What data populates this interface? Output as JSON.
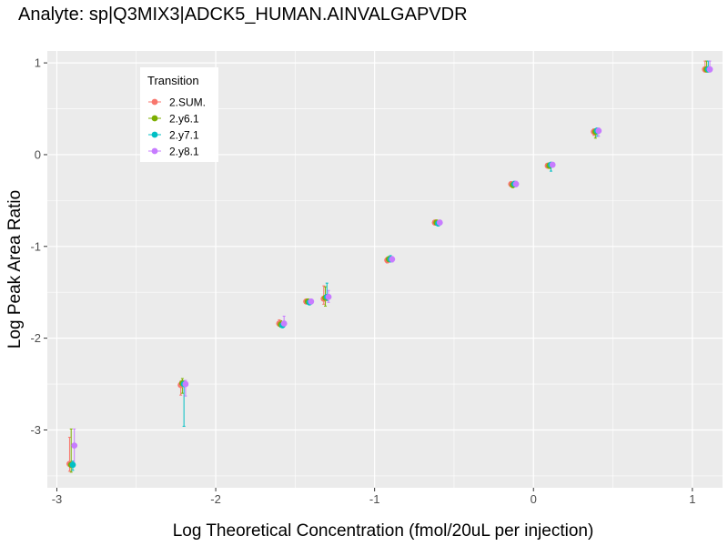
{
  "chart_data": {
    "type": "scatter",
    "title": "Analyte: sp|Q3MIX3|ADCK5_HUMAN.AINVALGAPVDR",
    "xlabel": "Log Theoretical Concentration (fmol/20uL per injection)",
    "ylabel": "Log Peak Area Ratio",
    "xlim": [
      -3.06,
      1.19
    ],
    "ylim": [
      -3.63,
      1.13
    ],
    "x_ticks": [
      -3,
      -2,
      -1,
      0,
      1
    ],
    "y_ticks": [
      -3,
      -2,
      -1,
      0,
      1
    ],
    "x_tick_labels": [
      "-3",
      "-2",
      "-1",
      "0",
      "1"
    ],
    "y_tick_labels": [
      "-3",
      "-2",
      "-1",
      "0",
      "1"
    ],
    "grid": true,
    "legend": {
      "title": "Transition",
      "placement": "top-left"
    },
    "error_bars": true,
    "series": [
      {
        "name": "2.SUM.",
        "color": "#F8766D",
        "x": [
          -2.92,
          -2.22,
          -1.6,
          -1.43,
          -1.32,
          -0.92,
          -0.62,
          -0.14,
          0.09,
          0.38,
          1.08
        ],
        "y": [
          -3.37,
          -2.51,
          -1.84,
          -1.6,
          -1.57,
          -1.15,
          -0.74,
          -0.32,
          -0.12,
          0.25,
          0.93
        ],
        "y_low": [
          -3.45,
          -2.62,
          -1.87,
          -1.62,
          -1.63,
          -1.18,
          -0.76,
          -0.35,
          -0.14,
          0.21,
          0.9
        ],
        "y_high": [
          -3.08,
          -2.47,
          -1.8,
          -1.58,
          -1.43,
          -1.12,
          -0.72,
          -0.3,
          -0.1,
          0.28,
          1.02
        ]
      },
      {
        "name": "2.y6.1",
        "color": "#7CAE00",
        "x": [
          -2.91,
          -2.21,
          -1.59,
          -1.42,
          -1.31,
          -0.91,
          -0.61,
          -0.13,
          0.1,
          0.39,
          1.09
        ],
        "y": [
          -3.38,
          -2.49,
          -1.85,
          -1.6,
          -1.56,
          -1.14,
          -0.74,
          -0.33,
          -0.12,
          0.25,
          0.93
        ],
        "y_low": [
          -3.46,
          -2.6,
          -1.88,
          -1.62,
          -1.65,
          -1.17,
          -0.76,
          -0.36,
          -0.15,
          0.18,
          0.9
        ],
        "y_high": [
          -2.99,
          -2.44,
          -1.81,
          -1.58,
          -1.44,
          -1.11,
          -0.72,
          -0.3,
          -0.09,
          0.28,
          1.02
        ]
      },
      {
        "name": "2.y7.1",
        "color": "#00BFC4",
        "x": [
          -2.9,
          -2.2,
          -1.58,
          -1.41,
          -1.3,
          -0.9,
          -0.6,
          -0.12,
          0.11,
          0.4,
          1.1
        ],
        "y": [
          -3.38,
          -2.5,
          -1.86,
          -1.61,
          -1.55,
          -1.14,
          -0.75,
          -0.32,
          -0.11,
          0.26,
          0.93
        ],
        "y_low": [
          -3.44,
          -2.96,
          -1.88,
          -1.63,
          -1.59,
          -1.17,
          -0.77,
          -0.35,
          -0.18,
          0.2,
          0.9
        ],
        "y_high": [
          -3.34,
          -2.48,
          -1.83,
          -1.59,
          -1.4,
          -1.1,
          -0.73,
          -0.29,
          -0.09,
          0.29,
          1.02
        ]
      },
      {
        "name": "2.y8.1",
        "color": "#C77CFF",
        "x": [
          -2.89,
          -2.19,
          -1.57,
          -1.4,
          -1.29,
          -0.89,
          -0.59,
          -0.11,
          0.12,
          0.41,
          1.11
        ],
        "y": [
          -3.17,
          -2.5,
          -1.84,
          -1.6,
          -1.55,
          -1.14,
          -0.74,
          -0.32,
          -0.11,
          0.26,
          0.93
        ],
        "y_low": [
          -3.39,
          -2.63,
          -1.87,
          -1.62,
          -1.61,
          -1.17,
          -0.76,
          -0.35,
          -0.13,
          0.2,
          0.9
        ],
        "y_high": [
          -2.99,
          -2.46,
          -1.76,
          -1.58,
          -1.48,
          -1.11,
          -0.72,
          -0.29,
          -0.09,
          0.29,
          1.02
        ]
      }
    ]
  }
}
